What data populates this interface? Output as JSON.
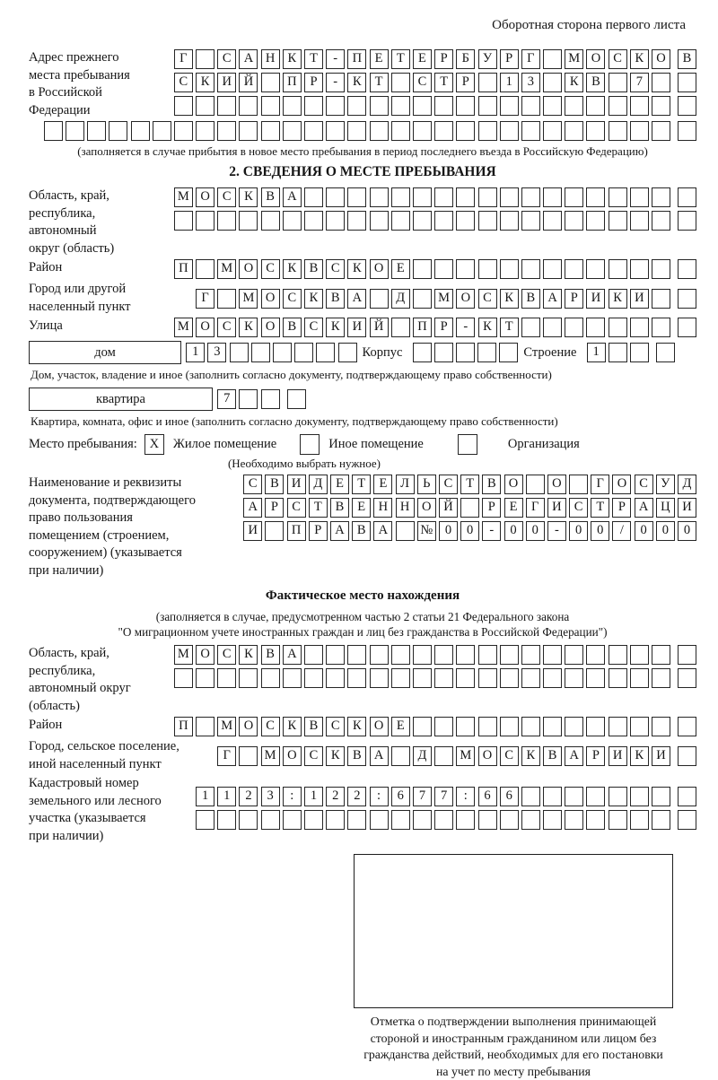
{
  "header": {
    "note": "Оборотная сторона первого листа"
  },
  "prev_address": {
    "label_lines": [
      "Адрес прежнего",
      "места пребывания",
      "в Российской",
      "Федерации"
    ],
    "rows": [
      {
        "chars": "Г САНКТ-ПЕТЕРБУРГ МОСКОВ",
        "count": 24
      },
      {
        "chars": "СКИЙ ПР-КТ СТР 13 КВ 7",
        "count": 24
      },
      {
        "chars": "",
        "count": 24
      },
      {
        "chars": "",
        "count": 30
      }
    ],
    "note": "(заполняется в случае прибытия в новое место пребывания в период последнего въезда в Российскую Федерацию)"
  },
  "section2": {
    "title": "2. СВЕДЕНИЯ О МЕСТЕ ПРЕБЫВАНИЯ",
    "oblast": {
      "label_lines": [
        "Область, край,",
        "республика,",
        "автономный",
        "округ (область)"
      ],
      "rows": [
        {
          "chars": "МОСКВА",
          "count": 24
        },
        {
          "chars": "",
          "count": 24
        }
      ]
    },
    "raion": {
      "label": "Район",
      "row": {
        "chars": "П МОСКВСКОЕ",
        "count": 24
      }
    },
    "gorod": {
      "label_lines": [
        "Город или другой",
        "населенный пункт"
      ],
      "row": {
        "chars": "Г МОСКВА Д МОСКВАРИКИ",
        "count": 23
      }
    },
    "ulitsa": {
      "label": "Улица",
      "row": {
        "chars": "МОСКОВСКИЙ ПР-КТ",
        "count": 24
      }
    },
    "dom_row": {
      "dom_label": "дом",
      "dom_cells": {
        "chars": "13",
        "count": 8
      },
      "korpus_label": "Корпус",
      "korpus_cells": {
        "chars": "",
        "count": 5
      },
      "stroenie_label": "Строение",
      "stroenie_cells": {
        "chars": "1",
        "count": 4
      }
    },
    "dom_note": "Дом, участок, владение и иное (заполнить согласно документу, подтверждающему право собственности)",
    "kvartira_row": {
      "label": "квартира",
      "cells": {
        "chars": "7",
        "count": 4
      }
    },
    "kvartira_note": "Квартира, комната, офис и иное (заполнить согласно документу, подтверждающему право собственности)",
    "mesto": {
      "label": "Место пребывания:",
      "options": [
        {
          "label": "Жилое помещение",
          "mark": "X"
        },
        {
          "label": "Иное помещение",
          "mark": ""
        },
        {
          "label": "Организация",
          "mark": ""
        }
      ],
      "note": "(Необходимо выбрать нужное)"
    },
    "doc": {
      "label_lines": [
        "Наименование и реквизиты",
        "документа, подтверждающего",
        "право пользования",
        "помещением (строением,",
        "сооружением) (указывается",
        "при наличии)"
      ],
      "rows": [
        {
          "chars": "СВИДЕТЕЛЬСТВО О ГОСУД",
          "count": 21
        },
        {
          "chars": "АРСТВЕННОЙ РЕГИСТРАЦИ",
          "count": 21
        },
        {
          "chars": "И ПРАВА №00-00-00/000",
          "count": 21
        }
      ]
    }
  },
  "factual": {
    "title": "Фактическое место нахождения",
    "note_lines": [
      "(заполняется в случае, предусмотренном частью 2 статьи 21 Федерального закона",
      "\"О миграционном учете иностранных граждан и лиц без гражданства в Российской Федерации\")"
    ],
    "oblast": {
      "label_lines": [
        "Область, край,",
        "республика,",
        "автономный округ",
        "(область)"
      ],
      "rows": [
        {
          "chars": "МОСКВА",
          "count": 24
        },
        {
          "chars": "",
          "count": 24
        }
      ]
    },
    "raion": {
      "label": "Район",
      "row": {
        "chars": "П МОСКВСКОЕ",
        "count": 24
      }
    },
    "gorod": {
      "label_lines": [
        "Город, сельское поселение,",
        "иной населенный пункт"
      ],
      "row": {
        "chars": "Г МОСКВА Д МОСКВАРИКИ",
        "count": 22
      }
    },
    "kadastr": {
      "label_lines": [
        "Кадастровый номер",
        "земельного или лесного",
        "участка (указывается",
        "при наличии)"
      ],
      "rows": [
        {
          "chars": "1123:122:677:66",
          "count": 23
        },
        {
          "chars": "",
          "count": 23
        }
      ]
    }
  },
  "stamp": {
    "caption_lines": [
      "Отметка о подтверждении выполнения принимающей",
      "стороной и иностранным гражданином или лицом без",
      "гражданства действий, необходимых для его постановки",
      "на учет по месту пребывания"
    ]
  }
}
